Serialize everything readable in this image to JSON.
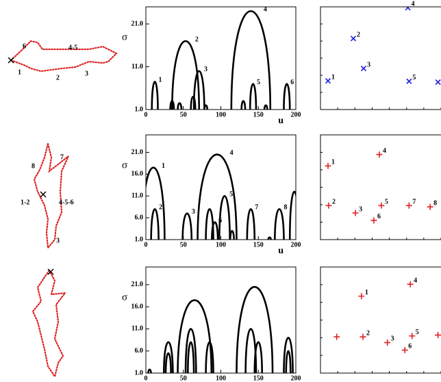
{
  "shapes": [
    {
      "labels": [
        "6",
        "4-5",
        "1",
        "2",
        "3"
      ]
    },
    {
      "labels": [
        "7",
        "8",
        "1-2",
        "4-5-6",
        "3"
      ]
    },
    {
      "labels": []
    }
  ],
  "chart_data": [
    {
      "type": "contour",
      "y_label": "σ",
      "x_label": "u",
      "xlim": [
        0,
        200
      ],
      "ylim": [
        1,
        25
      ],
      "xticks": [
        0,
        50,
        100,
        150,
        200
      ],
      "yticks": [
        {
          "value": 1,
          "label": "1.0"
        },
        {
          "value": 11,
          "label": "11.0"
        },
        {
          "value": 21,
          "label": "21.0"
        }
      ],
      "u": [
        12,
        53,
        71,
        140,
        143,
        188,
        35,
        45,
        63,
        80,
        130,
        160
      ],
      "sigma": [
        7.5,
        17,
        10,
        24,
        7,
        7,
        3,
        2.5,
        4,
        2,
        3,
        2
      ],
      "width": [
        8,
        36,
        14,
        52,
        8,
        8,
        5,
        5,
        6,
        4,
        5,
        4
      ],
      "labels": [
        "1",
        "2",
        "3",
        "4",
        "5",
        "6",
        null,
        null,
        null,
        null,
        null,
        null
      ],
      "color": "#000000"
    },
    {
      "type": "scatter",
      "xlim": [
        0,
        200
      ],
      "ylim": [
        1,
        25
      ],
      "marker": "x",
      "color": "#2222dd",
      "x": [
        12.5,
        54.5,
        71.6,
        145,
        147,
        195
      ],
      "y": [
        7.7,
        17.6,
        10.6,
        24.8,
        7.6,
        7.4
      ],
      "labels": [
        "1",
        "2",
        "3",
        "4",
        "5",
        "6"
      ]
    },
    {
      "type": "contour",
      "y_label": "σ",
      "x_label": "u",
      "xlim": [
        0,
        200
      ],
      "ylim": [
        1,
        25
      ],
      "xticks": [
        0,
        50,
        100,
        150,
        200
      ],
      "yticks": [
        {
          "value": 1,
          "label": "1.0"
        },
        {
          "value": 6,
          "label": "6.0"
        },
        {
          "value": 11,
          "label": "11.0"
        },
        {
          "value": 16,
          "label": "16.0"
        },
        {
          "value": 21,
          "label": "21.0"
        }
      ],
      "u": [
        10,
        12,
        55,
        95,
        105,
        92,
        140,
        178,
        85,
        198,
        115,
        165
      ],
      "sigma": [
        17.5,
        8,
        7,
        20.5,
        11,
        5,
        8,
        8,
        8,
        12,
        3,
        1.5
      ],
      "width": [
        30,
        10,
        12,
        52,
        14,
        8,
        10,
        12,
        10,
        12,
        5,
        4
      ],
      "labels": [
        "1",
        "2",
        "3",
        "4",
        "5",
        "6",
        "7",
        "8",
        null,
        null,
        null,
        null
      ],
      "color": "#000000"
    },
    {
      "type": "scatter",
      "xlim": [
        0,
        200
      ],
      "ylim": [
        1,
        25
      ],
      "marker": "+",
      "color": "#dd2222",
      "x": [
        12.5,
        13.6,
        58,
        97.7,
        101,
        88.6,
        147,
        182
      ],
      "y": [
        17.9,
        8.8,
        7.1,
        20.5,
        8.8,
        5.4,
        8.8,
        8.5
      ],
      "labels": [
        "1",
        "2",
        "3",
        "4",
        "5",
        "6",
        "7",
        "8"
      ]
    },
    {
      "type": "contour",
      "y_label": "σ",
      "x_label": "u",
      "xlim": [
        0,
        200
      ],
      "ylim": [
        1,
        25
      ],
      "xticks": [
        0,
        50,
        100,
        150,
        200
      ],
      "yticks": [
        {
          "value": 1,
          "label": "1.0"
        },
        {
          "value": 6,
          "label": "6.0"
        },
        {
          "value": 11,
          "label": "11.0"
        },
        {
          "value": 16,
          "label": "16.0"
        },
        {
          "value": 21,
          "label": "21.0"
        }
      ],
      "u": [
        5,
        30,
        30,
        65,
        60,
        60,
        85,
        145,
        140,
        150,
        190,
        190
      ],
      "sigma": [
        1.8,
        8,
        5.5,
        17.5,
        11,
        8,
        8,
        20.5,
        11,
        8,
        9,
        6
      ],
      "width": [
        4,
        12,
        7,
        45,
        14,
        8,
        10,
        48,
        14,
        10,
        12,
        6
      ],
      "labels": [
        null,
        null,
        null,
        null,
        null,
        null,
        null,
        null,
        null,
        null,
        null,
        null
      ],
      "color": "#000000"
    },
    {
      "type": "scatter",
      "xlim": [
        0,
        200
      ],
      "ylim": [
        1,
        25
      ],
      "marker": "+",
      "color": "#dd2222",
      "x": [
        68,
        70.5,
        111,
        149,
        152,
        140,
        27,
        195
      ],
      "y": [
        18.4,
        9.2,
        7.9,
        21.1,
        9.4,
        6.2,
        9.2,
        9.6
      ],
      "labels": [
        "1",
        "2",
        "3",
        "4",
        "5",
        "6",
        null,
        null
      ]
    }
  ]
}
